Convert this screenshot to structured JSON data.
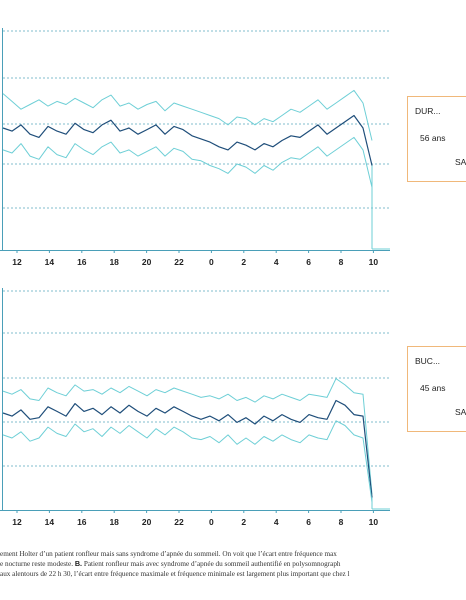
{
  "chart_data": [
    {
      "type": "line",
      "title": "",
      "xlabel": "",
      "ylabel": "",
      "x_tick_labels": [
        "12",
        "14",
        "16",
        "18",
        "20",
        "22",
        "0",
        "2",
        "4",
        "6",
        "8",
        "10"
      ],
      "series": [
        {
          "role": "max",
          "color": "#6ecfd6",
          "values": [
            100,
            95,
            90,
            93,
            96,
            92,
            95,
            93,
            97,
            94,
            91,
            96,
            99,
            92,
            94,
            90,
            93,
            95,
            89,
            94,
            92,
            90,
            88,
            86,
            84,
            80,
            85,
            84,
            80,
            84,
            82,
            86,
            90,
            88,
            92,
            96,
            90,
            94,
            98,
            102,
            94,
            70
          ]
        },
        {
          "role": "mean",
          "color": "#1f4e7a",
          "values": [
            78,
            76,
            80,
            74,
            72,
            79,
            76,
            74,
            81,
            77,
            75,
            80,
            83,
            76,
            78,
            74,
            77,
            80,
            74,
            79,
            77,
            73,
            71,
            69,
            66,
            64,
            69,
            67,
            64,
            68,
            66,
            70,
            73,
            72,
            76,
            80,
            74,
            78,
            82,
            86,
            78,
            54
          ]
        },
        {
          "role": "min",
          "color": "#6ecfd6",
          "values": [
            64,
            62,
            68,
            60,
            58,
            66,
            61,
            59,
            68,
            64,
            61,
            66,
            69,
            62,
            64,
            60,
            63,
            66,
            60,
            65,
            63,
            58,
            57,
            54,
            52,
            49,
            55,
            53,
            49,
            54,
            51,
            56,
            59,
            58,
            62,
            66,
            60,
            64,
            68,
            72,
            64,
            40
          ]
        }
      ],
      "info_box": {
        "name": "DUR...",
        "age": "56 ans",
        "sas": "SAS"
      }
    },
    {
      "type": "line",
      "title": "",
      "xlabel": "",
      "ylabel": "",
      "x_tick_labels": [
        "12",
        "14",
        "16",
        "18",
        "20",
        "22",
        "0",
        "2",
        "4",
        "6",
        "8",
        "10"
      ],
      "series": [
        {
          "role": "max",
          "color": "#6ecfd6",
          "values": [
            76,
            74,
            77,
            71,
            70,
            78,
            75,
            73,
            80,
            76,
            77,
            74,
            78,
            75,
            79,
            76,
            73,
            77,
            75,
            78,
            76,
            74,
            72,
            73,
            71,
            74,
            70,
            72,
            69,
            73,
            71,
            74,
            72,
            70,
            74,
            73,
            72,
            84,
            80,
            75,
            74,
            10
          ]
        },
        {
          "role": "mean",
          "color": "#1f4e7a",
          "values": [
            62,
            60,
            64,
            58,
            59,
            66,
            63,
            60,
            68,
            63,
            65,
            61,
            66,
            62,
            67,
            63,
            60,
            65,
            62,
            66,
            63,
            60,
            58,
            60,
            57,
            61,
            56,
            59,
            55,
            60,
            57,
            61,
            58,
            56,
            61,
            59,
            58,
            70,
            67,
            61,
            60,
            8
          ]
        },
        {
          "role": "min",
          "color": "#6ecfd6",
          "values": [
            48,
            46,
            50,
            44,
            46,
            53,
            49,
            47,
            55,
            50,
            52,
            47,
            53,
            49,
            54,
            50,
            46,
            52,
            48,
            53,
            50,
            46,
            45,
            47,
            43,
            48,
            42,
            46,
            42,
            47,
            44,
            48,
            45,
            43,
            48,
            46,
            45,
            57,
            54,
            48,
            46,
            5
          ]
        }
      ],
      "info_box": {
        "name": "BUC...",
        "age": "45 ans",
        "sas": "SAS"
      }
    }
  ],
  "caption": {
    "line1": "ement Holter d’un patient ronfleur mais sans syndrome d’apnée du sommeil. On voit que l’écart entre fréquence max",
    "line2_a": "e nocturne reste modeste.",
    "line2_b": "B.",
    "line2_c": "Patient ronfleur mais avec syndrome d’apnée du sommeil authentifié en polysomnograph",
    "line3": "aux alentours de 22 h 30, l’écart entre fréquence maximale et fréquence minimale est largement plus important que chez l"
  }
}
